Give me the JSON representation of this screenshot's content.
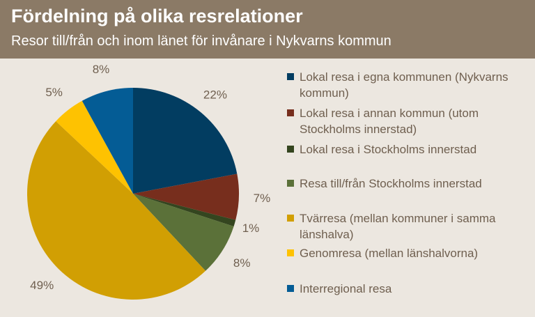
{
  "header": {
    "title": "Fördelning på olika resrelationer",
    "subtitle": "Resor till/från och inom länet för invånare i Nykvarns kommun"
  },
  "colors": {
    "header_bg": "#8b7a66",
    "page_bg": "#ece7e0",
    "label_text": "#6f5f4f"
  },
  "chart_data": {
    "type": "pie",
    "title": "Fördelning på olika resrelationer",
    "subtitle": "Resor till/från och inom länet för invånare i Nykvarns kommun",
    "legend_position": "right",
    "slices": [
      {
        "label": "Lokal resa i egna kommunen (Nykvarns kommun)",
        "value": 22,
        "display": "22%",
        "color": "#023d61"
      },
      {
        "label": "Lokal resa i annan kommun (utom Stockholms innerstad)",
        "value": 7,
        "display": "7%",
        "color": "#772e1d"
      },
      {
        "label": "Lokal resa i Stockholms innerstad",
        "value": 1,
        "display": "1%",
        "color": "#34451f"
      },
      {
        "label": "Resa till/från Stockholms innerstad",
        "value": 8,
        "display": "8%",
        "color": "#5b7139"
      },
      {
        "label": "Tvärresa (mellan kommuner i samma länshalva)",
        "value": 49,
        "display": "49%",
        "color": "#d19f03"
      },
      {
        "label": "Genomresa (mellan länshalvorna)",
        "value": 5,
        "display": "5%",
        "color": "#fec201"
      },
      {
        "label": "Interregional resa",
        "value": 8,
        "display": "8%",
        "color": "#045c95"
      }
    ]
  }
}
